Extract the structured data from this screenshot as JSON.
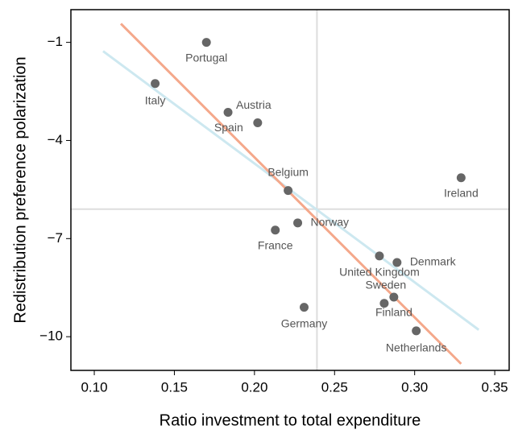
{
  "chart_data": {
    "type": "scatter",
    "x_label": "Ratio investment to total expenditure",
    "y_label": "Redistribution preference polarization",
    "xlim": [
      0.0854,
      0.359
    ],
    "ylim": [
      -11.03,
      0.0
    ],
    "xticks": [
      {
        "value": 0.1,
        "label": "0.10"
      },
      {
        "value": 0.15,
        "label": "0.15"
      },
      {
        "value": 0.2,
        "label": "0.20"
      },
      {
        "value": 0.25,
        "label": "0.25"
      },
      {
        "value": 0.3,
        "label": "0.30"
      },
      {
        "value": 0.35,
        "label": "0.35"
      }
    ],
    "yticks": [
      {
        "value": -1,
        "label": "−1"
      },
      {
        "value": -4,
        "label": "−4"
      },
      {
        "value": -7,
        "label": "−7"
      },
      {
        "value": -10,
        "label": "−10"
      }
    ],
    "color": "#666666",
    "points": {
      "labels": [
        "Portugal",
        "Italy",
        "Austria",
        "Spain",
        "Belgium",
        "Ireland",
        "Norway",
        "France",
        "United Kingdom",
        "Denmark",
        "Sweden",
        "Finland",
        "Germany",
        "Netherlands"
      ],
      "x": [
        0.17,
        0.138,
        0.1835,
        0.202,
        0.221,
        0.329,
        0.227,
        0.213,
        0.278,
        0.289,
        0.287,
        0.281,
        0.231,
        0.301
      ],
      "values": [
        -1.0,
        -2.26,
        -3.14,
        -3.46,
        -5.53,
        -5.14,
        -6.52,
        -6.74,
        -7.53,
        -7.73,
        -8.79,
        -8.98,
        -9.1,
        -9.82
      ]
    },
    "fit_lines": [
      {
        "color": "#f4a88b",
        "x": [
          0.1166,
          0.329
        ],
        "values": [
          -0.43,
          -10.83
        ]
      },
      {
        "color": "#cde8f0",
        "x": [
          0.1055,
          0.34
        ],
        "values": [
          -1.27,
          -9.79
        ]
      }
    ],
    "reference_lines": {
      "color": "#dddddd",
      "x": 0.239,
      "y": -6.1
    }
  }
}
